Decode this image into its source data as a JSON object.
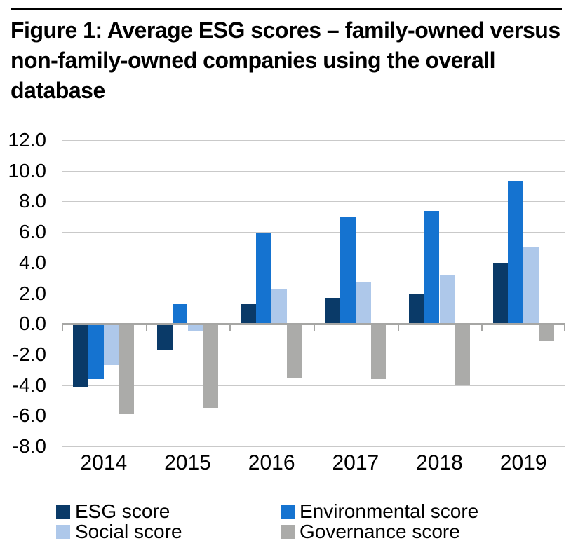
{
  "figure": {
    "title": "Figure 1: Average ESG scores – family-owned versus non-family-owned companies using the overall database"
  },
  "colors": {
    "esg": "#0a3a68",
    "environmental": "#1573d0",
    "social": "#aec8ea",
    "governance": "#ababa9",
    "gridline": "#c9c9c9",
    "axis": "#a6a6a4",
    "text": "#000000",
    "background": "#ffffff"
  },
  "chart_data": {
    "type": "bar",
    "title": "Figure 1: Average ESG scores – family-owned versus non-family-owned companies using the overall database",
    "categories": [
      "2014",
      "2015",
      "2016",
      "2017",
      "2018",
      "2019"
    ],
    "series": [
      {
        "name": "ESG score",
        "color_key": "esg",
        "values": [
          -4.1,
          -1.7,
          1.3,
          1.7,
          2.0,
          4.0
        ]
      },
      {
        "name": "Environmental score",
        "color_key": "environmental",
        "values": [
          -3.6,
          1.3,
          5.9,
          7.0,
          7.4,
          9.3
        ]
      },
      {
        "name": "Social score",
        "color_key": "social",
        "values": [
          -2.7,
          -0.5,
          2.3,
          2.7,
          3.2,
          5.0
        ]
      },
      {
        "name": "Governance score",
        "color_key": "governance",
        "values": [
          -5.9,
          -5.5,
          -3.5,
          -3.6,
          -4.0,
          -1.1
        ]
      }
    ],
    "xlabel": "",
    "ylabel": "",
    "ylim": [
      -8,
      12
    ],
    "ytick_step": 2,
    "ytick_format": "one_decimal",
    "grid": true,
    "legend_position": "bottom"
  },
  "legend": {
    "items": [
      {
        "label": "ESG score",
        "color_key": "esg"
      },
      {
        "label": "Environmental score",
        "color_key": "environmental"
      },
      {
        "label": "Social score",
        "color_key": "social"
      },
      {
        "label": "Governance score",
        "color_key": "governance"
      }
    ]
  }
}
